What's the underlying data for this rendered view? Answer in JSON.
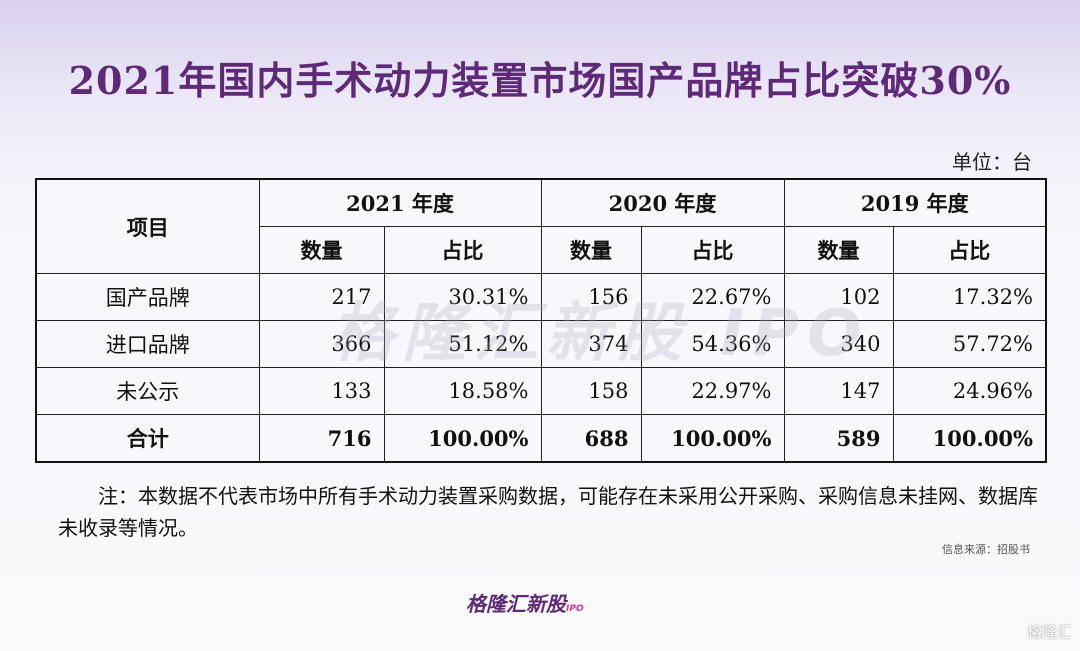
{
  "title": "2021年国内手术动力装置市场国产品牌占比突破30%",
  "unit": "单位：台",
  "table": {
    "item_header": "项目",
    "years": [
      "2021 年度",
      "2020 年度",
      "2019 年度"
    ],
    "sub_headers": [
      "数量",
      "占比"
    ],
    "rows": [
      {
        "label": "国产品牌",
        "cells": [
          "217",
          "30.31%",
          "156",
          "22.67%",
          "102",
          "17.32%"
        ]
      },
      {
        "label": "进口品牌",
        "cells": [
          "366",
          "51.12%",
          "374",
          "54.36%",
          "340",
          "57.72%"
        ]
      },
      {
        "label": "未公示",
        "cells": [
          "133",
          "18.58%",
          "158",
          "22.97%",
          "147",
          "24.96%"
        ]
      },
      {
        "label": "合计",
        "cells": [
          "716",
          "100.00%",
          "688",
          "100.00%",
          "589",
          "100.00%"
        ]
      }
    ]
  },
  "note": "注：本数据不代表市场中所有手术动力装置采购数据，可能存在未采用公开采购、采购信息未挂网、数据库未收录等情况。",
  "source": "信息来源：招股书",
  "watermark": "格隆汇新股 IPO",
  "logo": {
    "text": "格隆汇新股",
    "sub": "IPO"
  },
  "corner_logo": "格隆汇"
}
